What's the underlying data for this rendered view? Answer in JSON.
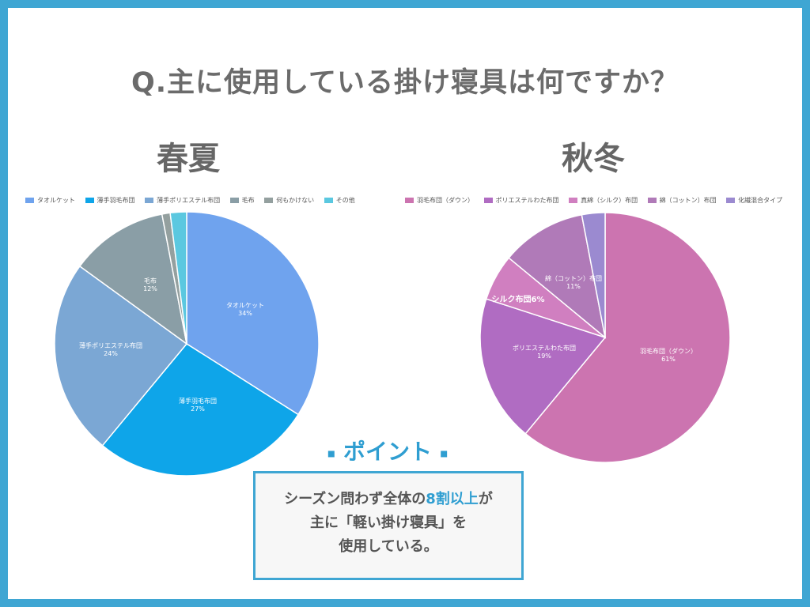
{
  "question": "Q.主に使用している掛け寝具は何ですか？",
  "point": {
    "title": "ポイント",
    "bullet": "▪",
    "line1_a": "シーズン問わず全体の",
    "line1_highlight": "8割以上",
    "line1_b": "が",
    "line2": "主に「軽い掛け寝具」を",
    "line3": "使用している。"
  },
  "chart_data": [
    {
      "type": "pie",
      "title": "春夏",
      "legend_position": "top",
      "slices": [
        {
          "label": "タオルケット",
          "value": 34,
          "pct_label": "34%",
          "color": "#6fa3ee"
        },
        {
          "label": "薄手羽毛布団",
          "value": 27,
          "pct_label": "27%",
          "color": "#0ea5e9"
        },
        {
          "label": "薄手ポリエステル布団",
          "value": 24,
          "pct_label": "24%",
          "color": "#7ba7d4"
        },
        {
          "label": "毛布",
          "value": 12,
          "pct_label": "12%",
          "color": "#8a9ea6"
        },
        {
          "label": "何もかけない",
          "value": 1,
          "pct_label": "",
          "color": "#94a09f"
        },
        {
          "label": "その他",
          "value": 2,
          "pct_label": "",
          "color": "#5bc8e0"
        }
      ]
    },
    {
      "type": "pie",
      "title": "秋冬",
      "legend_position": "top",
      "slices": [
        {
          "label": "羽毛布団（ダウン）",
          "legend_label": "羽毛布団（ダウン）",
          "value": 61,
          "pct_label": "61%",
          "color": "#cc74b0"
        },
        {
          "label": "ポリエステルわた布団",
          "legend_label": "ポリエステルわた布団",
          "value": 19,
          "pct_label": "19%",
          "color": "#b06cc2"
        },
        {
          "label": "シルク布団6%",
          "legend_label": "真綿（シルク）布団",
          "value": 6,
          "pct_label": "",
          "color": "#d07fc0"
        },
        {
          "label": "綿（コットン）布団",
          "legend_label": "綿（コットン）布団",
          "value": 11,
          "pct_label": "11%",
          "color": "#b07ab8"
        },
        {
          "label": "化繊混合タイプ",
          "legend_label": "化繊混合タイプ",
          "value": 3,
          "pct_label": "",
          "color": "#9b8ad0"
        }
      ]
    }
  ]
}
